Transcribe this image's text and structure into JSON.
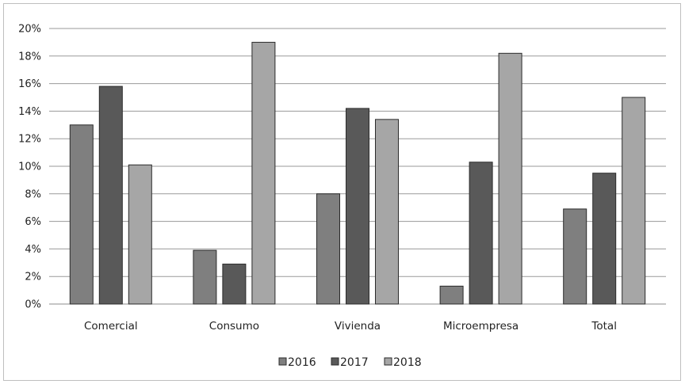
{
  "chart_data": {
    "type": "bar",
    "categories": [
      "Comercial",
      "Consumo",
      "Vivienda",
      "Microempresa",
      "Total"
    ],
    "series": [
      {
        "name": "2016",
        "color": "#7f7f7f",
        "values": [
          13.0,
          3.9,
          8.0,
          1.3,
          6.9
        ]
      },
      {
        "name": "2017",
        "color": "#595959",
        "values": [
          15.8,
          2.9,
          14.2,
          10.3,
          9.5
        ]
      },
      {
        "name": "2018",
        "color": "#a6a6a6",
        "values": [
          10.1,
          19.0,
          13.4,
          18.2,
          15.0
        ]
      }
    ],
    "ylim": [
      0,
      20
    ],
    "y_ticks": [
      "0%",
      "2%",
      "4%",
      "6%",
      "8%",
      "10%",
      "12%",
      "14%",
      "16%",
      "18%",
      "20%"
    ],
    "grid": true,
    "legend_position": "bottom",
    "title": "",
    "xlabel": "",
    "ylabel": ""
  }
}
